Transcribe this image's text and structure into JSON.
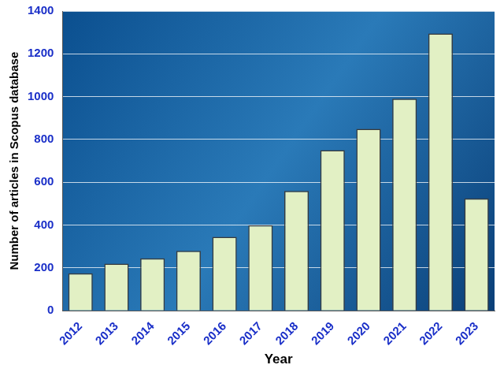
{
  "chart_data": {
    "type": "bar",
    "x_label": "Year",
    "y_label": "Number of articles in Scopus database",
    "categories": [
      "2012",
      "2013",
      "2014",
      "2015",
      "2016",
      "2017",
      "2018",
      "2019",
      "2020",
      "2021",
      "2022",
      "2023"
    ],
    "values": [
      175,
      220,
      245,
      280,
      345,
      400,
      560,
      750,
      850,
      990,
      1295,
      525
    ],
    "color": "#e2f0c4",
    "ylim": [
      0,
      1400
    ],
    "yticks": [
      0,
      200,
      400,
      600,
      800,
      1000,
      1200,
      1400
    ],
    "grid": true
  }
}
